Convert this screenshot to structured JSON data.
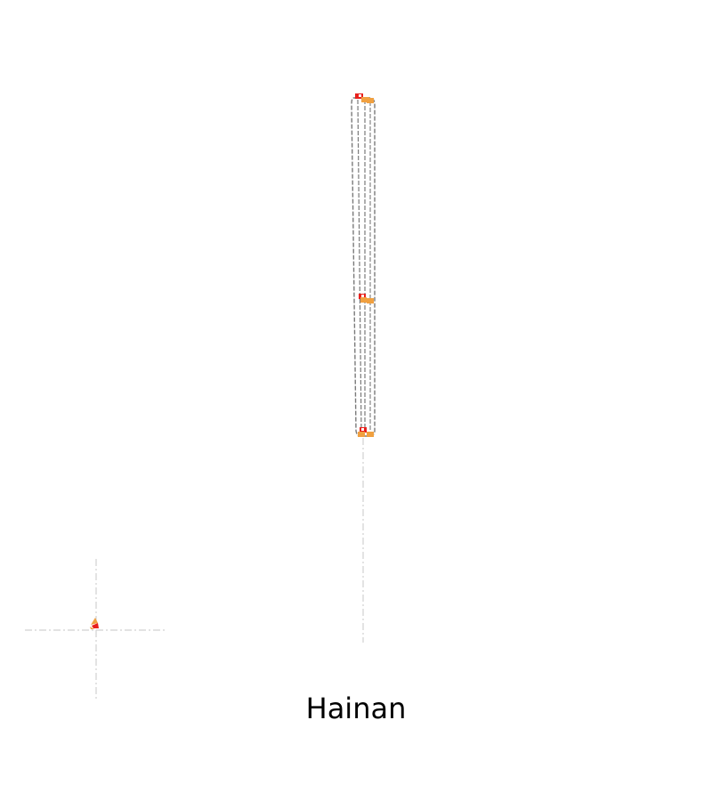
{
  "map": {
    "title": "Hainan",
    "colors": {
      "background": "#ffffff",
      "outline": "#7a7a7a",
      "guide": "#d0d0d0",
      "marker_primary": "#e8201c",
      "marker_secondary": "#f0a040"
    },
    "icons": [
      "route-marker-icon",
      "inset-marker-icon"
    ]
  }
}
